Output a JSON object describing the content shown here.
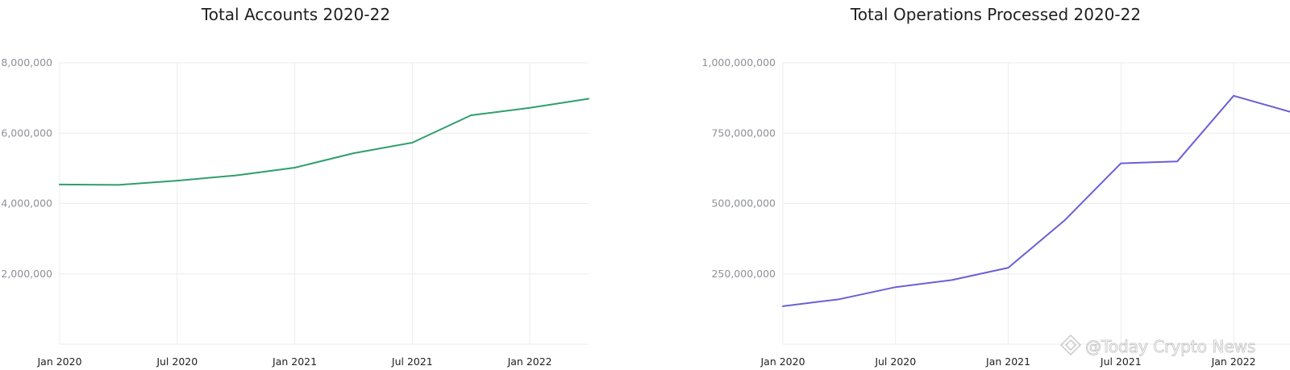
{
  "chart_data": [
    {
      "type": "line",
      "title": "Total Accounts 2020-22",
      "xlabel": "",
      "ylabel": "",
      "color": "#2f9e6e",
      "x": [
        "2020-01",
        "2020-04",
        "2020-07",
        "2020-10",
        "2021-01",
        "2021-04",
        "2021-07",
        "2021-10",
        "2022-01",
        "2022-04"
      ],
      "values": [
        4540000,
        4530000,
        4650000,
        4800000,
        5020000,
        5430000,
        5730000,
        6510000,
        6720000,
        6980000
      ],
      "x_ticks": [
        "Jan 2020",
        "Jul 2020",
        "Jan 2021",
        "Jul 2021",
        "Jan 2022"
      ],
      "y_ticks": [
        2000000,
        4000000,
        6000000,
        8000000
      ],
      "y_tick_labels": [
        "2,000,000",
        "4,000,000",
        "6,000,000",
        "8,000,000"
      ],
      "ylim": [
        0,
        8000000
      ],
      "grid": true
    },
    {
      "type": "line",
      "title": "Total Operations Processed 2020-22",
      "xlabel": "",
      "ylabel": "",
      "color": "#6b5fd6",
      "x": [
        "2020-01",
        "2020-04",
        "2020-07",
        "2020-10",
        "2021-01",
        "2021-04",
        "2021-07",
        "2021-10",
        "2022-01",
        "2022-04"
      ],
      "values": [
        135000000,
        160000000,
        203000000,
        228000000,
        272000000,
        440000000,
        643000000,
        650000000,
        883000000,
        826000000
      ],
      "x_ticks": [
        "Jan 2020",
        "Jul 2020",
        "Jan 2021",
        "Jul 2021",
        "Jan 2022"
      ],
      "y_ticks": [
        250000000,
        500000000,
        750000000,
        1000000000
      ],
      "y_tick_labels": [
        "250,000,000",
        "500,000,000",
        "750,000,000",
        "1,000,000,000"
      ],
      "ylim": [
        0,
        1000000000
      ],
      "grid": true
    }
  ],
  "watermark": {
    "text": "@Today Crypto News",
    "icon": "diamond-logo-icon"
  }
}
